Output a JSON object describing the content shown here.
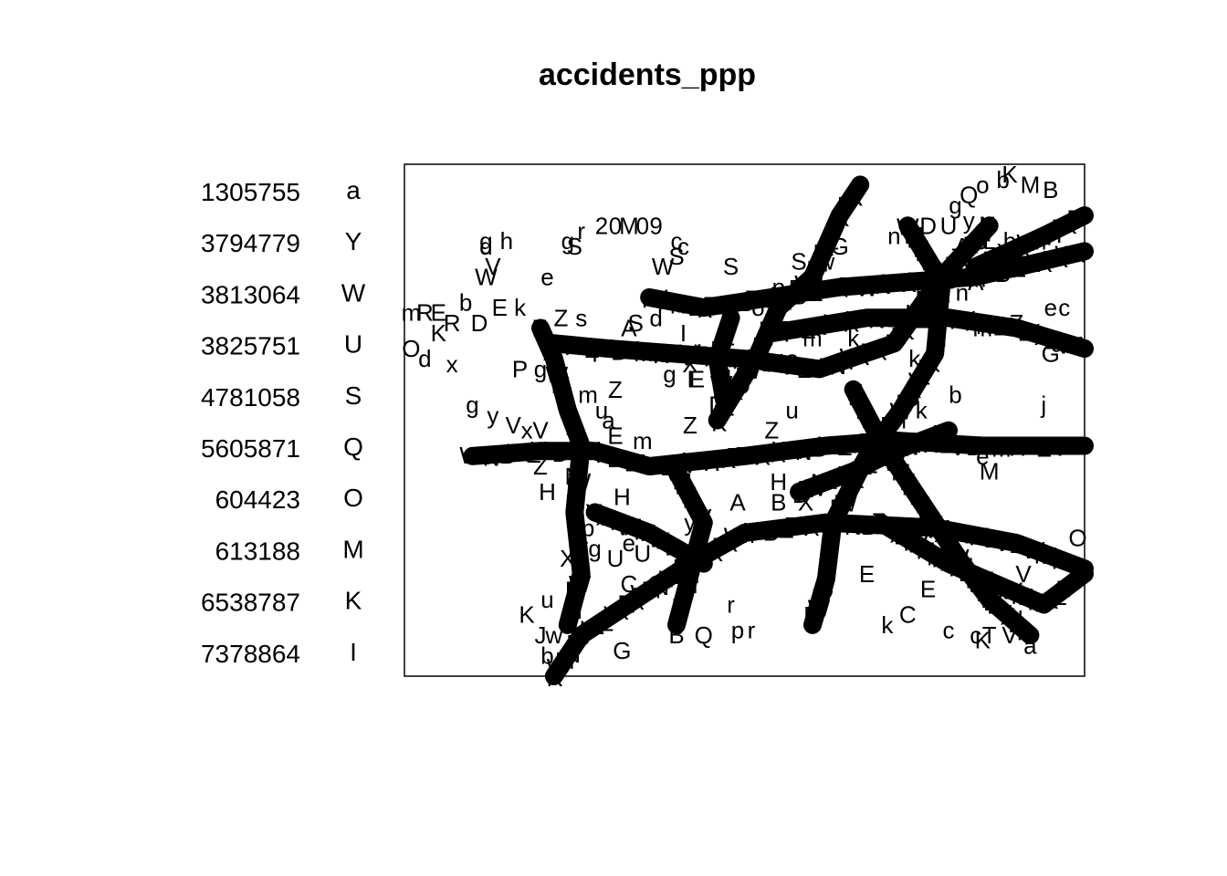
{
  "chart_data": {
    "type": "scatter",
    "title": "accidents_ppp",
    "xlabel": "",
    "ylabel": "",
    "grid": false,
    "axes_shown": false,
    "frame": true,
    "legend": {
      "placement": "left",
      "entries": [
        {
          "label": "1305755",
          "symbol": "a"
        },
        {
          "label": "3794779",
          "symbol": "Y"
        },
        {
          "label": "3813064",
          "symbol": "W"
        },
        {
          "label": "3825751",
          "symbol": "U"
        },
        {
          "label": "4781058",
          "symbol": "S"
        },
        {
          "label": "5605871",
          "symbol": "Q"
        },
        {
          "label": "604423",
          "symbol": "O"
        },
        {
          "label": "613188",
          "symbol": "M"
        },
        {
          "label": "6538787",
          "symbol": "K"
        },
        {
          "label": "7378864",
          "symbol": "I"
        }
      ]
    },
    "xlim": [
      0,
      100
    ],
    "ylim": [
      0,
      100
    ],
    "roads": [
      [
        [
          10,
          43
        ],
        [
          20,
          44
        ],
        [
          28,
          44
        ],
        [
          36,
          41
        ],
        [
          50,
          43
        ],
        [
          62,
          45
        ],
        [
          72,
          46
        ],
        [
          85,
          45
        ],
        [
          100,
          45
        ]
      ],
      [
        [
          22,
          0
        ],
        [
          26,
          8
        ],
        [
          34,
          15
        ],
        [
          42,
          22
        ],
        [
          50,
          28
        ],
        [
          62,
          30
        ],
        [
          78,
          29
        ],
        [
          90,
          26
        ],
        [
          100,
          21
        ]
      ],
      [
        [
          20,
          68
        ],
        [
          22,
          62
        ],
        [
          24,
          52
        ],
        [
          26,
          45
        ],
        [
          25,
          32
        ],
        [
          26,
          20
        ],
        [
          24,
          10
        ]
      ],
      [
        [
          46,
          50
        ],
        [
          52,
          63
        ],
        [
          55,
          72
        ],
        [
          60,
          78
        ],
        [
          64,
          90
        ],
        [
          66,
          94
        ],
        [
          67,
          96
        ]
      ],
      [
        [
          74,
          88
        ],
        [
          79,
          77
        ],
        [
          78,
          63
        ],
        [
          73,
          52
        ],
        [
          68,
          43
        ],
        [
          63,
          30
        ],
        [
          62,
          19
        ],
        [
          60,
          10
        ]
      ],
      [
        [
          86,
          88
        ],
        [
          79,
          78
        ],
        [
          72,
          65
        ],
        [
          61,
          60
        ],
        [
          50,
          62
        ],
        [
          40,
          63
        ],
        [
          30,
          64
        ],
        [
          22,
          65
        ]
      ],
      [
        [
          36,
          74
        ],
        [
          44,
          72
        ],
        [
          54,
          74
        ],
        [
          64,
          76
        ],
        [
          74,
          77
        ],
        [
          84,
          78
        ],
        [
          100,
          83
        ]
      ],
      [
        [
          54,
          67
        ],
        [
          68,
          70
        ],
        [
          80,
          70
        ],
        [
          90,
          68
        ],
        [
          100,
          64
        ]
      ],
      [
        [
          66,
          56
        ],
        [
          70,
          46
        ],
        [
          76,
          34
        ],
        [
          82,
          22
        ],
        [
          86,
          15
        ],
        [
          92,
          8
        ]
      ],
      [
        [
          40,
          40
        ],
        [
          44,
          30
        ],
        [
          42,
          20
        ],
        [
          40,
          10
        ]
      ],
      [
        [
          70,
          30
        ],
        [
          80,
          22
        ],
        [
          94,
          14
        ],
        [
          100,
          20
        ]
      ],
      [
        [
          47,
          54
        ],
        [
          46,
          62
        ],
        [
          48,
          70
        ]
      ],
      [
        [
          28,
          32
        ],
        [
          36,
          28
        ],
        [
          44,
          22
        ]
      ],
      [
        [
          58,
          36
        ],
        [
          66,
          40
        ],
        [
          72,
          44
        ],
        [
          80,
          48
        ]
      ],
      [
        [
          84,
          80
        ],
        [
          94,
          86
        ],
        [
          100,
          90
        ]
      ]
    ],
    "scattered_points": [
      {
        "x": 83,
        "y": 94,
        "symbol": "Q"
      },
      {
        "x": 85,
        "y": 96,
        "symbol": "o"
      },
      {
        "x": 89,
        "y": 98,
        "symbol": "K"
      },
      {
        "x": 92,
        "y": 96,
        "symbol": "M"
      },
      {
        "x": 95,
        "y": 95,
        "symbol": "B"
      },
      {
        "x": 88,
        "y": 97,
        "symbol": "b"
      },
      {
        "x": 95,
        "y": 87,
        "symbol": "p"
      },
      {
        "x": 97,
        "y": 88,
        "symbol": "c"
      },
      {
        "x": 97,
        "y": 82,
        "symbol": "J"
      },
      {
        "x": 89,
        "y": 85,
        "symbol": "b"
      },
      {
        "x": 86,
        "y": 85,
        "symbol": "L"
      },
      {
        "x": 83,
        "y": 89,
        "symbol": "y"
      },
      {
        "x": 77,
        "y": 88,
        "symbol": "D"
      },
      {
        "x": 72,
        "y": 86,
        "symbol": "n"
      },
      {
        "x": 64,
        "y": 84,
        "symbol": "G"
      },
      {
        "x": 40,
        "y": 82,
        "symbol": "S"
      },
      {
        "x": 26,
        "y": 87,
        "symbol": "r"
      },
      {
        "x": 25,
        "y": 84,
        "symbol": "S"
      },
      {
        "x": 29,
        "y": 88,
        "symbol": "2"
      },
      {
        "x": 31,
        "y": 88,
        "symbol": "0"
      },
      {
        "x": 33,
        "y": 88,
        "symbol": "M"
      },
      {
        "x": 35,
        "y": 88,
        "symbol": "0"
      },
      {
        "x": 37,
        "y": 88,
        "symbol": "9"
      },
      {
        "x": 15,
        "y": 85,
        "symbol": "h"
      },
      {
        "x": 12,
        "y": 85,
        "symbol": "g"
      },
      {
        "x": 21,
        "y": 78,
        "symbol": "e"
      },
      {
        "x": 12,
        "y": 78,
        "symbol": "W"
      },
      {
        "x": 13,
        "y": 80,
        "symbol": "V"
      },
      {
        "x": 40,
        "y": 85,
        "symbol": "c"
      },
      {
        "x": 38,
        "y": 80,
        "symbol": "W"
      },
      {
        "x": 48,
        "y": 80,
        "symbol": "S"
      },
      {
        "x": 58,
        "y": 81,
        "symbol": "S"
      },
      {
        "x": 62,
        "y": 81,
        "symbol": "w"
      },
      {
        "x": 1,
        "y": 64,
        "symbol": "O"
      },
      {
        "x": 3,
        "y": 62,
        "symbol": "d"
      },
      {
        "x": 7,
        "y": 61,
        "symbol": "x"
      },
      {
        "x": 5,
        "y": 67,
        "symbol": "K"
      },
      {
        "x": 1,
        "y": 71,
        "symbol": "m"
      },
      {
        "x": 3,
        "y": 71,
        "symbol": "R"
      },
      {
        "x": 5,
        "y": 71,
        "symbol": "E"
      },
      {
        "x": 7,
        "y": 69,
        "symbol": "R"
      },
      {
        "x": 9,
        "y": 73,
        "symbol": "b"
      },
      {
        "x": 11,
        "y": 69,
        "symbol": "D"
      },
      {
        "x": 14,
        "y": 72,
        "symbol": "E"
      },
      {
        "x": 17,
        "y": 72,
        "symbol": "k"
      },
      {
        "x": 23,
        "y": 70,
        "symbol": "Z"
      },
      {
        "x": 26,
        "y": 70,
        "symbol": "s"
      },
      {
        "x": 34,
        "y": 69,
        "symbol": "S"
      },
      {
        "x": 37,
        "y": 70,
        "symbol": "d"
      },
      {
        "x": 33,
        "y": 68,
        "symbol": "A"
      },
      {
        "x": 41,
        "y": 67,
        "symbol": "I"
      },
      {
        "x": 43,
        "y": 64,
        "symbol": "r"
      },
      {
        "x": 42,
        "y": 58,
        "symbol": "I"
      },
      {
        "x": 43,
        "y": 58,
        "symbol": "E"
      },
      {
        "x": 39,
        "y": 59,
        "symbol": "g"
      },
      {
        "x": 42,
        "y": 61,
        "symbol": "X"
      },
      {
        "x": 27,
        "y": 55,
        "symbol": "m"
      },
      {
        "x": 31,
        "y": 56,
        "symbol": "Z"
      },
      {
        "x": 29,
        "y": 52,
        "symbol": "u"
      },
      {
        "x": 30,
        "y": 50,
        "symbol": "a"
      },
      {
        "x": 10,
        "y": 53,
        "symbol": "g"
      },
      {
        "x": 13,
        "y": 51,
        "symbol": "y"
      },
      {
        "x": 16,
        "y": 49,
        "symbol": "V"
      },
      {
        "x": 18,
        "y": 48,
        "symbol": "x"
      },
      {
        "x": 20,
        "y": 48,
        "symbol": "V"
      },
      {
        "x": 31,
        "y": 47,
        "symbol": "E"
      },
      {
        "x": 35,
        "y": 46,
        "symbol": "m"
      },
      {
        "x": 42,
        "y": 49,
        "symbol": "Z"
      },
      {
        "x": 46,
        "y": 53,
        "symbol": "D"
      },
      {
        "x": 54,
        "y": 48,
        "symbol": "Z"
      },
      {
        "x": 57,
        "y": 52,
        "symbol": "u"
      },
      {
        "x": 20,
        "y": 41,
        "symbol": "Z"
      },
      {
        "x": 25,
        "y": 39,
        "symbol": "M"
      },
      {
        "x": 21,
        "y": 36,
        "symbol": "H"
      },
      {
        "x": 32,
        "y": 35,
        "symbol": "H"
      },
      {
        "x": 55,
        "y": 38,
        "symbol": "H"
      },
      {
        "x": 49,
        "y": 34,
        "symbol": "A"
      },
      {
        "x": 55,
        "y": 34,
        "symbol": "B"
      },
      {
        "x": 59,
        "y": 34,
        "symbol": "X"
      },
      {
        "x": 44,
        "y": 31,
        "symbol": "V"
      },
      {
        "x": 27,
        "y": 29,
        "symbol": "p"
      },
      {
        "x": 28,
        "y": 25,
        "symbol": "g"
      },
      {
        "x": 24,
        "y": 23,
        "symbol": "X"
      },
      {
        "x": 31,
        "y": 23,
        "symbol": "U"
      },
      {
        "x": 35,
        "y": 24,
        "symbol": "U"
      },
      {
        "x": 33,
        "y": 26,
        "symbol": "e"
      },
      {
        "x": 33,
        "y": 18,
        "symbol": "C"
      },
      {
        "x": 37,
        "y": 18,
        "symbol": "C"
      },
      {
        "x": 21,
        "y": 15,
        "symbol": "u"
      },
      {
        "x": 33,
        "y": 14,
        "symbol": "w"
      },
      {
        "x": 18,
        "y": 12,
        "symbol": "K"
      },
      {
        "x": 22,
        "y": 8,
        "symbol": "w"
      },
      {
        "x": 20,
        "y": 8,
        "symbol": "J"
      },
      {
        "x": 21,
        "y": 4,
        "symbol": "b"
      },
      {
        "x": 32,
        "y": 5,
        "symbol": "G"
      },
      {
        "x": 40,
        "y": 8,
        "symbol": "B"
      },
      {
        "x": 44,
        "y": 8,
        "symbol": "Q"
      },
      {
        "x": 49,
        "y": 9,
        "symbol": "p"
      },
      {
        "x": 51,
        "y": 9,
        "symbol": "r"
      },
      {
        "x": 48,
        "y": 14,
        "symbol": "r"
      },
      {
        "x": 40,
        "y": 12,
        "symbol": "p"
      },
      {
        "x": 42,
        "y": 30,
        "symbol": "y"
      },
      {
        "x": 60,
        "y": 66,
        "symbol": "m"
      },
      {
        "x": 85,
        "y": 68,
        "symbol": "m"
      },
      {
        "x": 90,
        "y": 69,
        "symbol": "Z"
      },
      {
        "x": 95,
        "y": 72,
        "symbol": "e"
      },
      {
        "x": 97,
        "y": 72,
        "symbol": "c"
      },
      {
        "x": 96,
        "y": 65,
        "symbol": "d"
      },
      {
        "x": 95,
        "y": 63,
        "symbol": "G"
      },
      {
        "x": 94,
        "y": 53,
        "symbol": "j"
      },
      {
        "x": 87,
        "y": 79,
        "symbol": "A"
      },
      {
        "x": 84,
        "y": 77,
        "symbol": "A"
      },
      {
        "x": 82,
        "y": 75,
        "symbol": "n"
      },
      {
        "x": 99,
        "y": 27,
        "symbol": "O"
      },
      {
        "x": 91,
        "y": 20,
        "symbol": "V"
      },
      {
        "x": 91,
        "y": 16,
        "symbol": "v"
      },
      {
        "x": 86,
        "y": 15,
        "symbol": "N"
      },
      {
        "x": 90,
        "y": 12,
        "symbol": "u"
      },
      {
        "x": 85,
        "y": 7,
        "symbol": "K"
      },
      {
        "x": 84,
        "y": 8,
        "symbol": "c"
      },
      {
        "x": 86,
        "y": 8,
        "symbol": "T"
      },
      {
        "x": 89,
        "y": 8,
        "symbol": "V"
      },
      {
        "x": 92,
        "y": 6,
        "symbol": "a"
      },
      {
        "x": 80,
        "y": 9,
        "symbol": "c"
      },
      {
        "x": 86,
        "y": 40,
        "symbol": "M"
      },
      {
        "x": 85,
        "y": 43,
        "symbol": "e"
      },
      {
        "x": 81,
        "y": 92,
        "symbol": "g"
      },
      {
        "x": 80,
        "y": 88,
        "symbol": "U"
      },
      {
        "x": 82,
        "y": 84,
        "symbol": "A"
      },
      {
        "x": 82,
        "y": 80,
        "symbol": "o"
      },
      {
        "x": 41,
        "y": 84,
        "symbol": "c"
      },
      {
        "x": 24,
        "y": 85,
        "symbol": "g"
      },
      {
        "x": 12,
        "y": 84,
        "symbol": "d"
      },
      {
        "x": 17,
        "y": 60,
        "symbol": "P"
      },
      {
        "x": 20,
        "y": 60,
        "symbol": "g"
      },
      {
        "x": 22,
        "y": 64,
        "symbol": "W"
      },
      {
        "x": 28,
        "y": 63,
        "symbol": "Y"
      },
      {
        "x": 48,
        "y": 73,
        "symbol": "o"
      },
      {
        "x": 52,
        "y": 72,
        "symbol": "o"
      },
      {
        "x": 55,
        "y": 76,
        "symbol": "p"
      },
      {
        "x": 66,
        "y": 66,
        "symbol": "k"
      },
      {
        "x": 75,
        "y": 62,
        "symbol": "k"
      },
      {
        "x": 57,
        "y": 62,
        "symbol": "o"
      },
      {
        "x": 63,
        "y": 45,
        "symbol": "d"
      },
      {
        "x": 76,
        "y": 52,
        "symbol": "k"
      },
      {
        "x": 81,
        "y": 55,
        "symbol": "b"
      },
      {
        "x": 68,
        "y": 20,
        "symbol": "E"
      },
      {
        "x": 77,
        "y": 17,
        "symbol": "E"
      },
      {
        "x": 74,
        "y": 12,
        "symbol": "C"
      },
      {
        "x": 71,
        "y": 10,
        "symbol": "k"
      }
    ]
  }
}
